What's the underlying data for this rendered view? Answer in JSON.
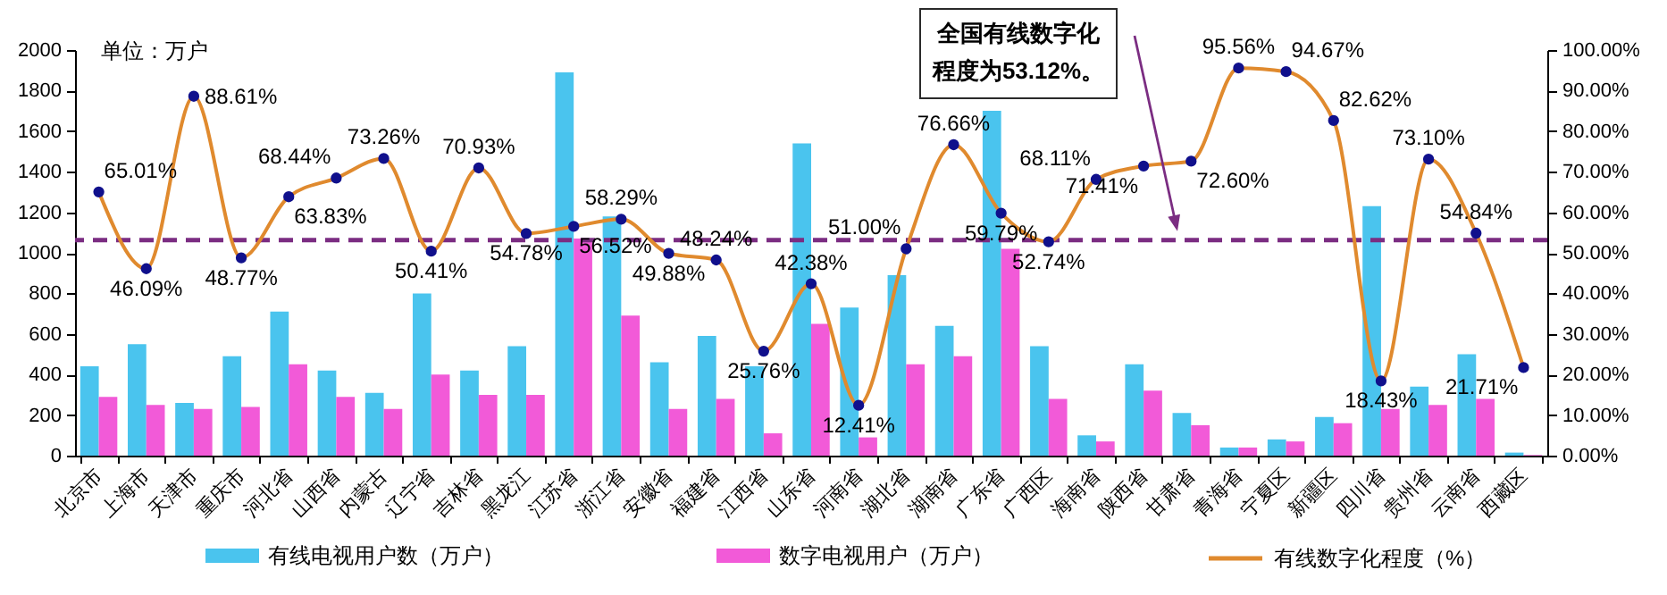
{
  "chart_data": {
    "type": "bar",
    "ylabel": "单位：万户",
    "categories": [
      "北京市",
      "上海市",
      "天津市",
      "重庆市",
      "河北省",
      "山西省",
      "内蒙古",
      "辽宁省",
      "吉林省",
      "黑龙江",
      "江苏省",
      "浙江省",
      "安徽省",
      "福建省",
      "江西省",
      "山东省",
      "河南省",
      "湖北省",
      "湖南省",
      "广东省",
      "广西区",
      "海南省",
      "陕西省",
      "甘肃省",
      "青海省",
      "宁夏区",
      "新疆区",
      "四川省",
      "贵州省",
      "云南省",
      "西藏区"
    ],
    "series": [
      {
        "name": "有线电视用户数（万户）",
        "color": "#4ac4ee",
        "values": [
          440,
          550,
          260,
          490,
          710,
          420,
          310,
          800,
          420,
          540,
          1890,
          1180,
          460,
          590,
          440,
          1540,
          730,
          890,
          640,
          1700,
          540,
          100,
          450,
          210,
          40,
          80,
          190,
          1230,
          340,
          500,
          15
        ]
      },
      {
        "name": "数字电视用户（万户）",
        "color": "#f25ad8",
        "values": [
          290,
          250,
          230,
          240,
          450,
          290,
          230,
          400,
          300,
          300,
          1070,
          690,
          230,
          280,
          110,
          650,
          90,
          450,
          490,
          1020,
          280,
          70,
          320,
          150,
          40,
          70,
          160,
          230,
          250,
          280,
          3
        ]
      },
      {
        "name": "有线数字化程度（%）",
        "type": "line",
        "axis": "y2",
        "color": "#e08a2e",
        "values": [
          65.01,
          46.09,
          88.61,
          48.77,
          63.83,
          68.44,
          73.26,
          50.41,
          70.93,
          54.78,
          56.52,
          58.29,
          49.88,
          48.24,
          25.76,
          42.38,
          12.41,
          51.0,
          76.66,
          59.79,
          52.74,
          68.11,
          71.41,
          72.6,
          95.56,
          94.67,
          82.62,
          18.43,
          73.1,
          54.84,
          21.71
        ],
        "value_labels": [
          "65.01%",
          "46.09%",
          "88.61%",
          "48.77%",
          "63.83%",
          "68.44%",
          "73.26%",
          "50.41%",
          "70.93%",
          "54.78%",
          "56.52%",
          "58.29%",
          "49.88%",
          "48.24%",
          "25.76%",
          "42.38%",
          "12.41%",
          "51.00%",
          "76.66%",
          "59.79%",
          "52.74%",
          "68.11%",
          "71.41%",
          "72.60%",
          "95.56%",
          "94.67%",
          "82.62%",
          "18.43%",
          "73.10%",
          "54.84%",
          "21.71%"
        ]
      }
    ],
    "ylim": [
      0,
      2000
    ],
    "yticks": [
      0,
      200,
      400,
      600,
      800,
      1000,
      1200,
      1400,
      1600,
      1800,
      2000
    ],
    "y2lim": [
      0,
      100
    ],
    "y2ticks": [
      {
        "value": 0,
        "label": "0.00%"
      },
      {
        "value": 10,
        "label": "10.00%"
      },
      {
        "value": 20,
        "label": "20.00%"
      },
      {
        "value": 30,
        "label": "30.00%"
      },
      {
        "value": 40,
        "label": "40.00%"
      },
      {
        "value": 50,
        "label": "50.00%"
      },
      {
        "value": 60,
        "label": "60.00%"
      },
      {
        "value": 70,
        "label": "70.00%"
      },
      {
        "value": 80,
        "label": "80.00%"
      },
      {
        "value": 90,
        "label": "90.00%"
      },
      {
        "value": 100,
        "label": "100.00%"
      }
    ],
    "ref_lines": [
      {
        "axis": "y2",
        "value": 53.12,
        "color": "#7b2d82",
        "line_style": "dashed"
      }
    ],
    "annotations": [
      "全国有线数字化程度为53.12%。"
    ],
    "legend": "bottom",
    "grid": false,
    "marker": "circle"
  }
}
